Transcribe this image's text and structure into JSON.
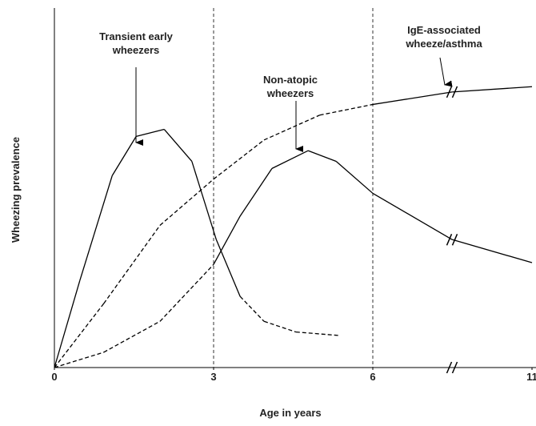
{
  "chart_data": {
    "type": "line",
    "xlabel": "Age in years",
    "ylabel": "Wheezing prevalence",
    "xlim": [
      0,
      11
    ],
    "xticks": [
      0,
      3,
      6,
      11
    ],
    "xbreak": 8.5,
    "ylim": [
      0,
      100
    ],
    "vlines": [
      3,
      6
    ],
    "grid": false,
    "series": [
      {
        "name": [
          "Transient early",
          "wheezers"
        ],
        "color": "#000000",
        "dashed_x": [
          3.6,
          5.4
        ],
        "x": [
          0,
          0.48,
          1.09,
          1.54,
          2.07,
          2.59,
          3.05,
          3.5,
          3.95,
          4.55,
          5.38
        ],
        "values": [
          0,
          24.5,
          54,
          65,
          67,
          58,
          36,
          20,
          13,
          10,
          9
        ]
      },
      {
        "name": [
          "Non-atopic",
          "wheezers"
        ],
        "color": "#000000",
        "dashed_x": [
          0,
          3
        ],
        "x": [
          0,
          0.93,
          1.99,
          3,
          3.5,
          4.1,
          4.78,
          5.31,
          6,
          8.49,
          11
        ],
        "values": [
          0,
          4.3,
          13,
          29,
          42.6,
          56,
          61,
          58,
          49,
          36,
          29.5
        ]
      },
      {
        "name": [
          "IgE-associated",
          "wheeze/asthma"
        ],
        "color": "#000000",
        "dashed_x": [
          0,
          6
        ],
        "x": [
          0,
          0.93,
          1.99,
          3,
          3.95,
          5,
          6,
          8.49,
          11
        ],
        "values": [
          0,
          18,
          40,
          53,
          64,
          71,
          74,
          77.5,
          79
        ]
      }
    ]
  }
}
